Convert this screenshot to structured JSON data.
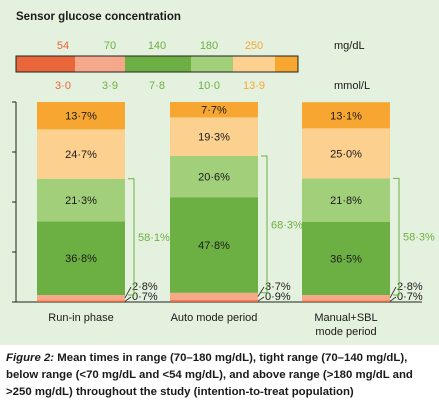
{
  "chart_data": {
    "type": "bar",
    "stacked": true,
    "title": "Sensor glucose concentration",
    "units": {
      "mgdl": "mg/dL",
      "mmol": "mmol/L"
    },
    "scale": {
      "mgdl_ticks": [
        "54",
        "70",
        "140",
        "180",
        "250"
      ],
      "mmol_ticks": [
        "3·0",
        "3·9",
        "7·8",
        "10·0",
        "13·9"
      ],
      "colors": [
        "#e8663a",
        "#f5a88a",
        "#6cb043",
        "#a2cf7a",
        "#fcd08f",
        "#f7a731"
      ]
    },
    "categories": [
      "Run-in phase",
      "Auto mode period",
      "Manual+SBL mode period"
    ],
    "series": [
      {
        "range": "<54 mg/dL",
        "color": "#e8663a",
        "values": [
          0.7,
          0.9,
          0.7
        ],
        "labels": [
          "0·7%",
          "0·9%",
          "0·7%"
        ]
      },
      {
        "range": "54–70 mg/dL",
        "color": "#f5a88a",
        "values": [
          2.8,
          3.7,
          2.8
        ],
        "labels": [
          "2·8%",
          "3·7%",
          "2·8%"
        ]
      },
      {
        "range": "70–140 mg/dL",
        "color": "#6cb043",
        "values": [
          36.8,
          47.8,
          36.5
        ],
        "labels": [
          "36·8%",
          "47·8%",
          "36·5%"
        ]
      },
      {
        "range": "140–180 mg/dL",
        "color": "#a2cf7a",
        "values": [
          21.3,
          20.6,
          21.8
        ],
        "labels": [
          "21·3%",
          "20·6%",
          "21·8%"
        ]
      },
      {
        "range": "180–250 mg/dL",
        "color": "#fcd08f",
        "values": [
          24.7,
          19.3,
          25.0
        ],
        "labels": [
          "24·7%",
          "19·3%",
          "25·0%"
        ]
      },
      {
        "range": ">250 mg/dL",
        "color": "#f7a731",
        "values": [
          13.7,
          7.7,
          13.1
        ],
        "labels": [
          "13·7%",
          "7·7%",
          "13·1%"
        ]
      }
    ],
    "time_in_range": {
      "values": [
        58.1,
        68.3,
        58.3
      ],
      "labels": [
        "58·1%",
        "68·3%",
        "58·3%"
      ],
      "color": "#6cb043"
    },
    "ylim": [
      0,
      100
    ],
    "xlabel": "",
    "ylabel": "",
    "grid": false
  },
  "caption": {
    "label": "Figure 2:",
    "text": " Mean times in range (70–180 mg/dL), tight range (70–140 mg/dL), below range (<70 mg/dL and <54 mg/dL), and above range (>180 mg/dL and >250 mg/dL) throughout the study (intention-to-treat population)"
  }
}
